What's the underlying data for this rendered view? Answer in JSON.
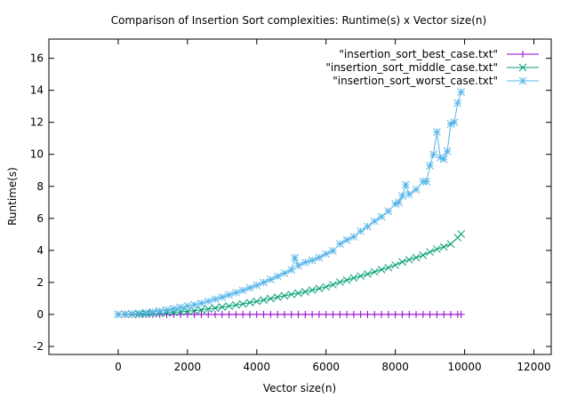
{
  "chart_data": {
    "type": "line",
    "title": "Comparison of Insertion Sort complexities: Runtime(s) x Vector size(n)",
    "xlabel": "Vector size(n)",
    "ylabel": "Runtime(s)",
    "xlim": [
      -2000,
      12500
    ],
    "ylim": [
      -2.5,
      17.2
    ],
    "xticks": [
      0,
      2000,
      4000,
      6000,
      8000,
      10000,
      12000
    ],
    "yticks": [
      -2,
      0,
      2,
      4,
      6,
      8,
      10,
      12,
      14,
      16
    ],
    "grid": false,
    "legend_position": "top-right",
    "series": [
      {
        "name": "\"insertion_sort_best_case.txt\"",
        "color": "#9400d3",
        "marker": "plus",
        "x": [
          0,
          200,
          400,
          600,
          800,
          1000,
          1200,
          1400,
          1600,
          1800,
          2000,
          2200,
          2400,
          2600,
          2800,
          3000,
          3200,
          3400,
          3600,
          3800,
          4000,
          4200,
          4400,
          4600,
          4800,
          5000,
          5200,
          5400,
          5600,
          5800,
          6000,
          6200,
          6400,
          6600,
          6800,
          7000,
          7200,
          7400,
          7600,
          7800,
          8000,
          8200,
          8400,
          8600,
          8800,
          9000,
          9200,
          9400,
          9600,
          9800,
          9900
        ],
        "y": [
          0,
          0,
          0,
          0,
          0,
          0,
          0,
          0,
          0,
          0,
          0,
          0,
          0,
          0,
          0,
          0,
          0,
          0,
          0,
          0,
          0,
          0,
          0,
          0,
          0,
          0,
          0,
          0,
          0,
          0,
          0,
          0,
          0,
          0,
          0,
          0,
          0,
          0,
          0,
          0,
          0,
          0,
          0,
          0,
          0,
          0,
          0,
          0,
          0,
          0,
          0
        ]
      },
      {
        "name": "\"insertion_sort_middle_case.txt\"",
        "color": "#009e73",
        "marker": "x",
        "x": [
          0,
          200,
          400,
          600,
          800,
          1000,
          1200,
          1400,
          1600,
          1800,
          2000,
          2200,
          2400,
          2600,
          2800,
          3000,
          3200,
          3400,
          3600,
          3800,
          4000,
          4200,
          4400,
          4600,
          4800,
          5000,
          5200,
          5400,
          5600,
          5800,
          6000,
          6200,
          6400,
          6600,
          6800,
          7000,
          7200,
          7400,
          7600,
          7800,
          8000,
          8200,
          8400,
          8600,
          8800,
          9000,
          9200,
          9400,
          9600,
          9800,
          9900
        ],
        "y": [
          0.0,
          0.0,
          0.01,
          0.02,
          0.03,
          0.05,
          0.07,
          0.1,
          0.13,
          0.16,
          0.2,
          0.24,
          0.29,
          0.34,
          0.4,
          0.46,
          0.52,
          0.59,
          0.66,
          0.74,
          0.82,
          0.9,
          0.99,
          1.08,
          1.17,
          1.25,
          1.33,
          1.42,
          1.52,
          1.62,
          1.72,
          1.86,
          2.02,
          2.14,
          2.28,
          2.4,
          2.52,
          2.66,
          2.8,
          2.92,
          3.08,
          3.28,
          3.42,
          3.55,
          3.7,
          3.9,
          4.08,
          4.22,
          4.4,
          4.8,
          5.02
        ]
      },
      {
        "name": "\"insertion_sort_worst_case.txt\"",
        "color": "#56b4e9",
        "marker": "asterisk",
        "x": [
          0,
          200,
          400,
          600,
          800,
          1000,
          1200,
          1400,
          1600,
          1800,
          2000,
          2200,
          2400,
          2600,
          2800,
          3000,
          3200,
          3400,
          3600,
          3800,
          4000,
          4200,
          4400,
          4600,
          4800,
          5000,
          5100,
          5200,
          5400,
          5600,
          5800,
          6000,
          6200,
          6400,
          6600,
          6800,
          7000,
          7200,
          7400,
          7600,
          7800,
          8000,
          8100,
          8200,
          8300,
          8400,
          8600,
          8800,
          8900,
          9000,
          9100,
          9200,
          9300,
          9400,
          9500,
          9600,
          9700,
          9800,
          9900
        ],
        "y": [
          0.0,
          0.02,
          0.04,
          0.07,
          0.11,
          0.16,
          0.22,
          0.28,
          0.36,
          0.44,
          0.52,
          0.6,
          0.7,
          0.82,
          0.95,
          1.08,
          1.22,
          1.36,
          1.5,
          1.66,
          1.82,
          2.0,
          2.18,
          2.38,
          2.58,
          2.78,
          3.55,
          3.05,
          3.25,
          3.38,
          3.55,
          3.78,
          3.98,
          4.4,
          4.65,
          4.85,
          5.2,
          5.5,
          5.82,
          6.1,
          6.45,
          6.9,
          7.0,
          7.4,
          8.1,
          7.5,
          7.8,
          8.3,
          8.3,
          9.3,
          10.0,
          11.4,
          9.8,
          9.7,
          10.2,
          11.9,
          12.0,
          13.2,
          13.9
        ]
      }
    ]
  }
}
